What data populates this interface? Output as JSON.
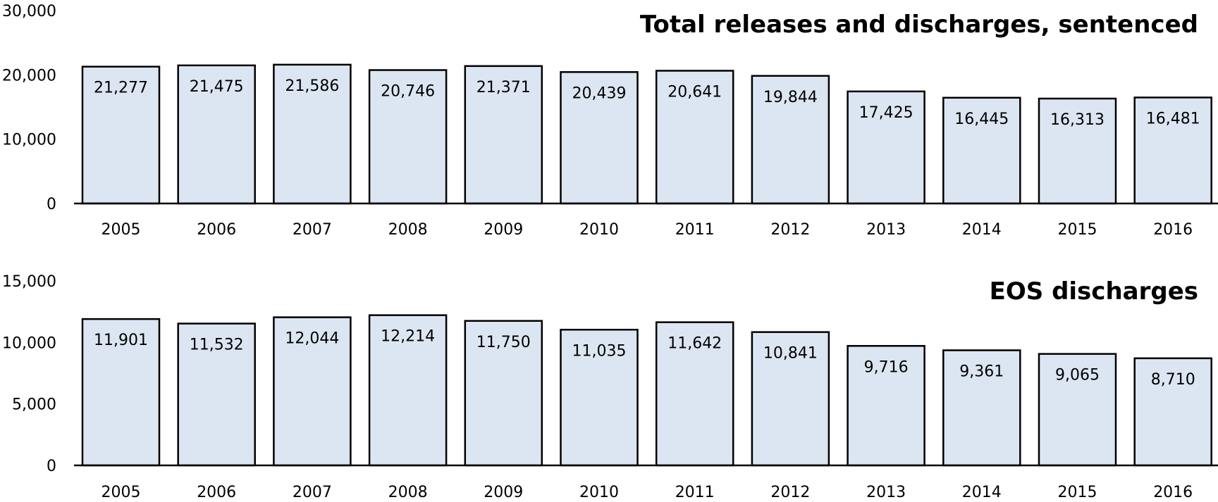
{
  "chart_data": [
    {
      "type": "bar",
      "title": "Total releases and discharges, sentenced",
      "xlabel": "",
      "ylabel": "",
      "categories": [
        "2005",
        "2006",
        "2007",
        "2008",
        "2009",
        "2010",
        "2011",
        "2012",
        "2013",
        "2014",
        "2015",
        "2016"
      ],
      "values": [
        21277,
        21475,
        21586,
        20746,
        21371,
        20439,
        20641,
        19844,
        17425,
        16445,
        16313,
        16481
      ],
      "value_labels": [
        "21,277",
        "21,475",
        "21,586",
        "20,746",
        "21,371",
        "20,439",
        "20,641",
        "19,844",
        "17,425",
        "16,445",
        "16,313",
        "16,481"
      ],
      "ylim": [
        0,
        30000
      ],
      "yticks": [
        0,
        10000,
        20000,
        30000
      ],
      "ytick_labels": [
        "0",
        "10,000",
        "20,000",
        "30,000"
      ],
      "grid": false,
      "legend": "none",
      "bar_color": "#DCE6F2",
      "bar_edge_color": "#000000"
    },
    {
      "type": "bar",
      "title": "EOS discharges",
      "xlabel": "",
      "ylabel": "",
      "categories": [
        "2005",
        "2006",
        "2007",
        "2008",
        "2009",
        "2010",
        "2011",
        "2012",
        "2013",
        "2014",
        "2015",
        "2016"
      ],
      "values": [
        11901,
        11532,
        12044,
        12214,
        11750,
        11035,
        11642,
        10841,
        9716,
        9361,
        9065,
        8710
      ],
      "value_labels": [
        "11,901",
        "11,532",
        "12,044",
        "12,214",
        "11,750",
        "11,035",
        "11,642",
        "10,841",
        "9,716",
        "9,361",
        "9,065",
        "8,710"
      ],
      "ylim": [
        0,
        15000
      ],
      "yticks": [
        0,
        5000,
        10000,
        15000
      ],
      "ytick_labels": [
        "0",
        "5,000",
        "10,000",
        "15,000"
      ],
      "grid": false,
      "legend": "none",
      "bar_color": "#DCE6F2",
      "bar_edge_color": "#000000"
    }
  ]
}
